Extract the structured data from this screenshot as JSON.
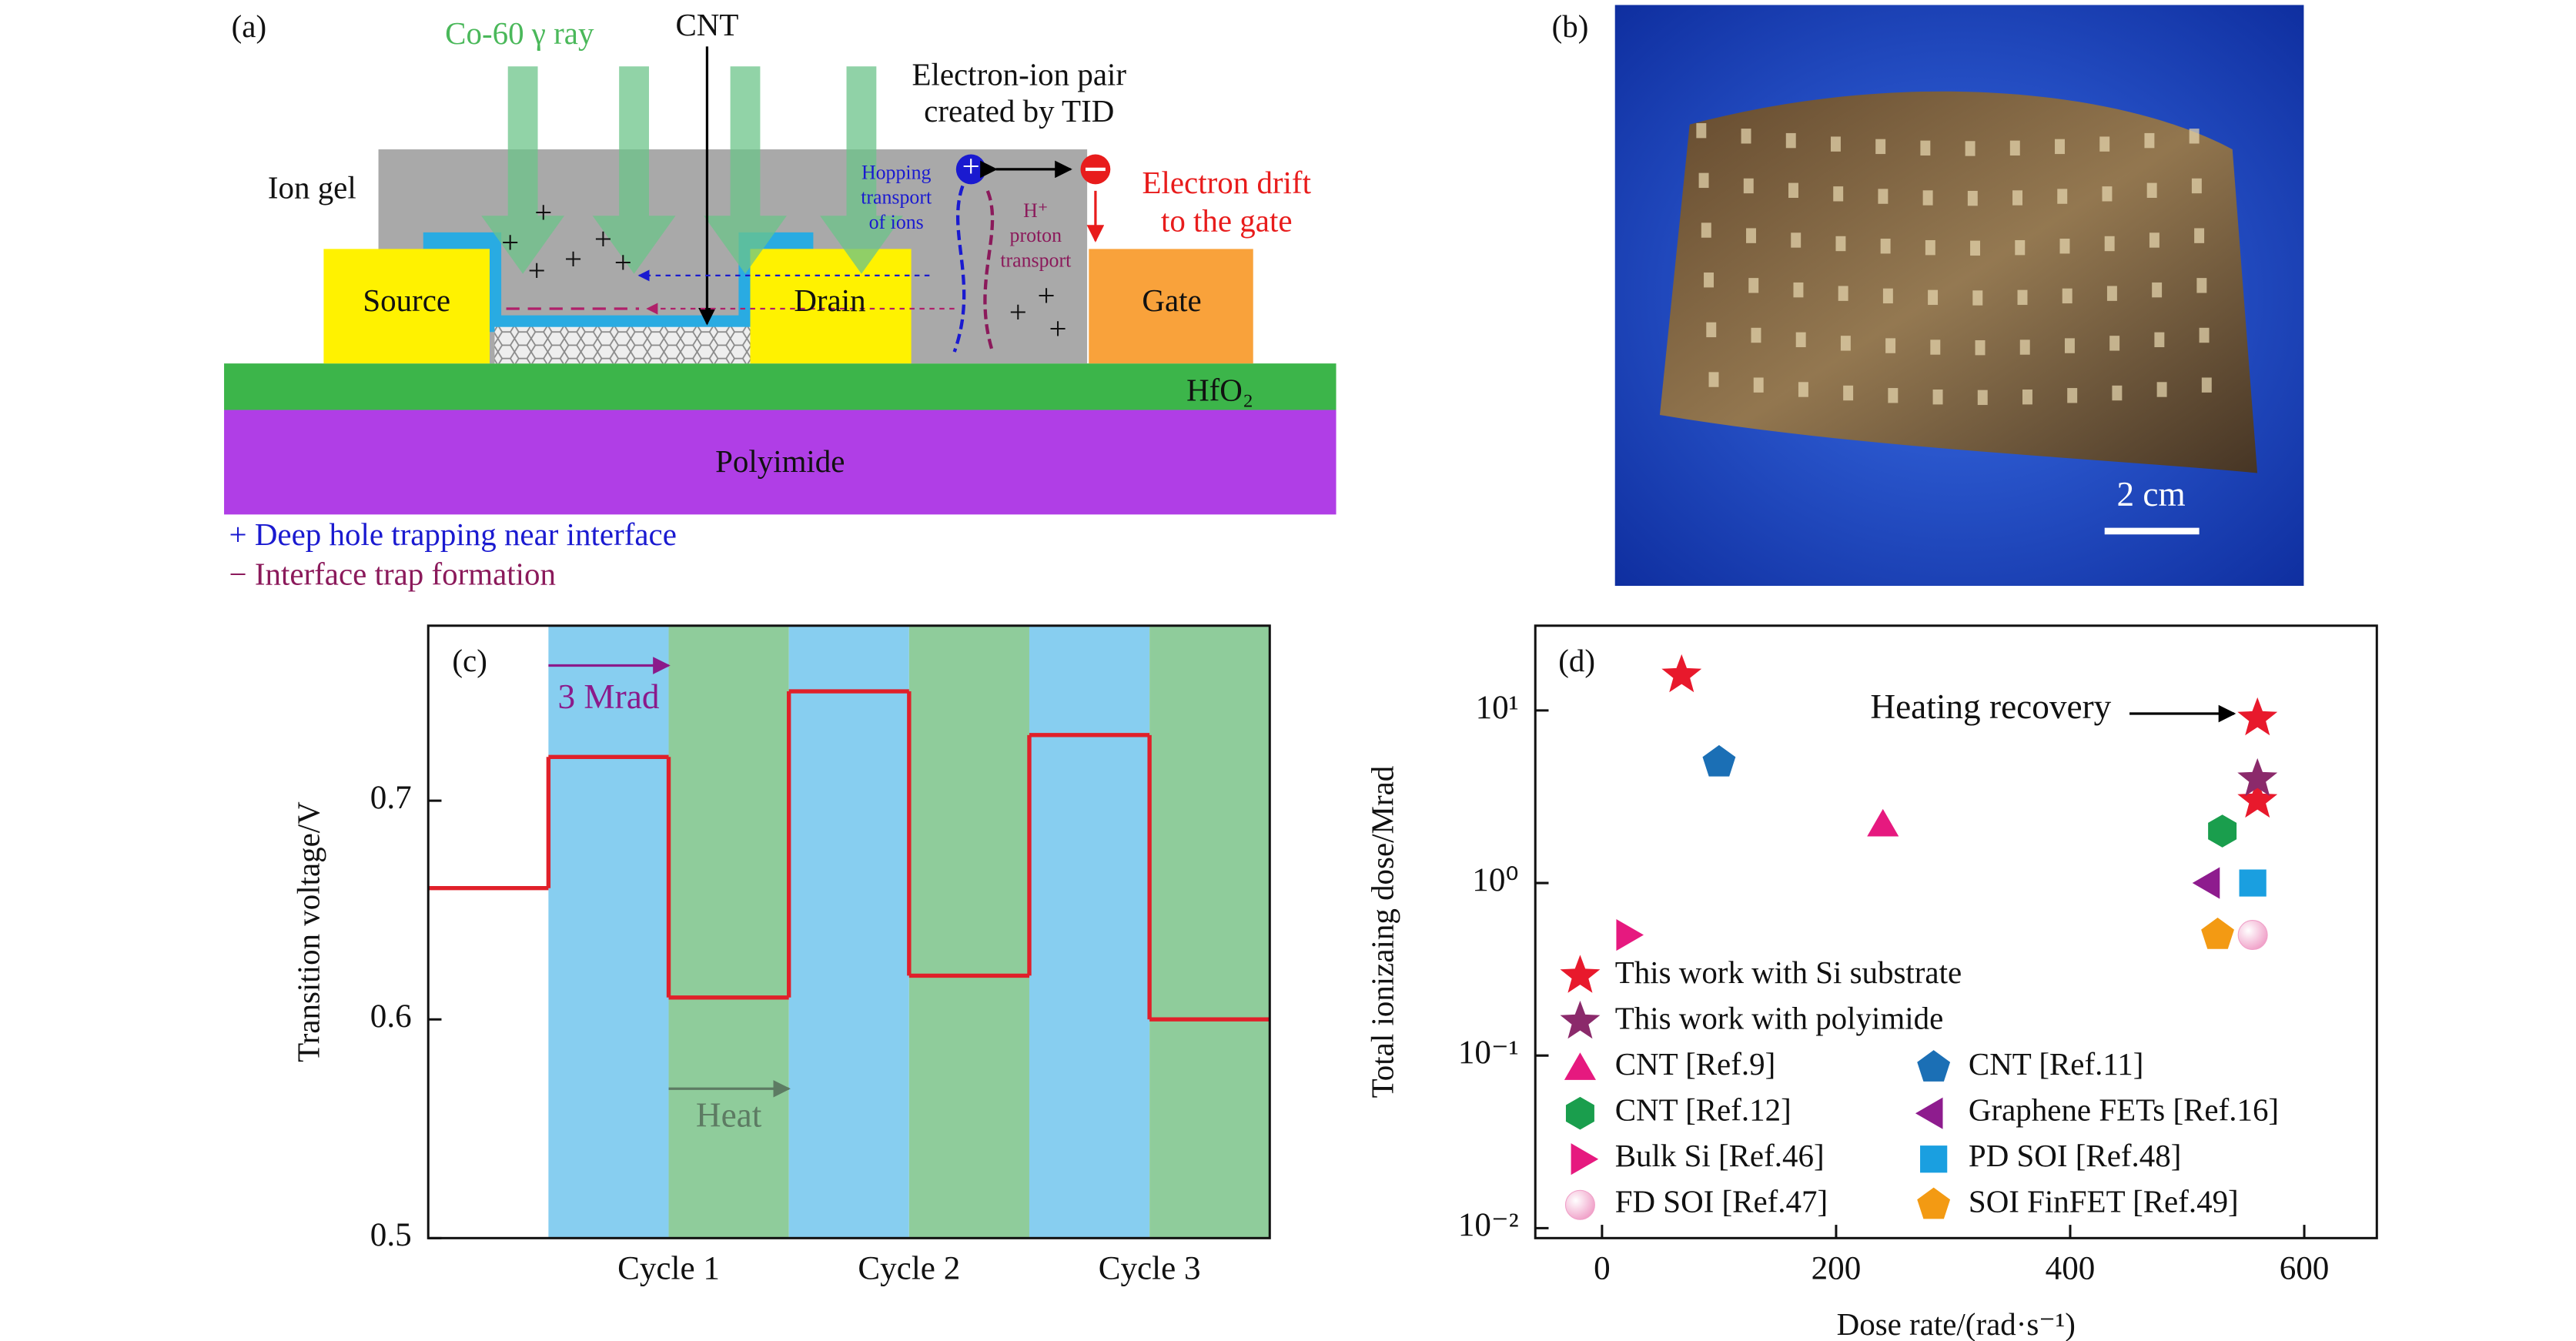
{
  "panel_labels": [
    "(a)",
    "(b)"
  ],
  "diagram": {
    "ray": "Co-60 γ ray",
    "cnt": "CNT",
    "pair": [
      "Electron-ion pair",
      "created by TID"
    ],
    "ion_gel": "Ion gel",
    "source": "Source",
    "drain": "Drain",
    "gate": "Gate",
    "hfo2": "HfO₂",
    "polyimide": "Polyimide",
    "hopping": [
      "Hopping",
      "transport",
      "of ions"
    ],
    "proton": [
      "H⁺",
      "proton",
      "transport"
    ],
    "drift": [
      "Electron drift",
      "to the gate"
    ],
    "notes": [
      "+ Deep hole trapping near interface",
      "− Interface trap formation"
    ]
  },
  "photo": {
    "scale": "2 cm"
  },
  "chart_data": [
    {
      "type": "line",
      "panel": "(c)",
      "ylabel": "Transition voltage/V",
      "step": "post",
      "color": "#e0202a",
      "x": [
        0,
        1,
        2,
        3,
        4,
        5,
        6
      ],
      "values": [
        0.66,
        0.72,
        0.61,
        0.75,
        0.62,
        0.73,
        0.6
      ],
      "xlim": [
        0,
        7
      ],
      "xticks": [
        {
          "value": 2,
          "label": "Cycle 1"
        },
        {
          "value": 4,
          "label": "Cycle 2"
        },
        {
          "value": 6,
          "label": "Cycle 3"
        }
      ],
      "ylim": [
        0.5,
        0.78
      ],
      "yticks": [
        0.5,
        0.6,
        0.7
      ],
      "shading": [
        {
          "from": 1,
          "to": 2,
          "color": "#87cef0"
        },
        {
          "from": 2,
          "to": 3,
          "color": "#8fcc9b"
        },
        {
          "from": 3,
          "to": 4,
          "color": "#87cef0"
        },
        {
          "from": 4,
          "to": 5,
          "color": "#8fcc9b"
        },
        {
          "from": 5,
          "to": 6,
          "color": "#87cef0"
        },
        {
          "from": 6,
          "to": 7,
          "color": "#8fcc9b"
        }
      ],
      "annotations": [
        {
          "text": "3 Mrad",
          "color": "#8b1a8b"
        },
        {
          "text": "Heat",
          "color": "#5d7b63"
        }
      ]
    },
    {
      "type": "scatter",
      "panel": "(d)",
      "xlabel": "Dose rate/(rad·s⁻¹)",
      "ylabel": "Total ionizaing dose/Mrad",
      "log_y": true,
      "legend": "lower left",
      "xlim": [
        -57,
        662
      ],
      "xticks": [
        0,
        200,
        400,
        600
      ],
      "ylim": [
        0.00875,
        31
      ],
      "yticks": [
        {
          "value": 10,
          "label": "10¹"
        },
        {
          "value": 1,
          "label": "10⁰"
        },
        {
          "value": 0.1,
          "label": "10⁻¹"
        },
        {
          "value": 0.01,
          "label": "10⁻²"
        }
      ],
      "annotation": "Heating recovery",
      "series": [
        {
          "name": "This work with Si substrate",
          "color": "#e8192c",
          "marker": "star",
          "x": [
            68,
            560,
            560
          ],
          "values": [
            16,
            9,
            3
          ]
        },
        {
          "name": "This work with polyimide",
          "color": "#8b2a6b",
          "marker": "star",
          "x": [
            560
          ],
          "values": [
            4
          ]
        },
        {
          "name": "CNT [Ref.9]",
          "color": "#e6197f",
          "marker": "triangle",
          "x": [
            240
          ],
          "values": [
            2.2
          ]
        },
        {
          "name": "CNT [Ref.11]",
          "color": "#1b6fb5",
          "marker": "pentagon",
          "x": [
            100
          ],
          "values": [
            5
          ]
        },
        {
          "name": "CNT [Ref.12]",
          "color": "#1a9e4d",
          "marker": "hexagon",
          "x": [
            530
          ],
          "values": [
            2
          ]
        },
        {
          "name": "Graphene FETs [Ref.16]",
          "color": "#8e1c8e",
          "marker": "left",
          "x": [
            520
          ],
          "values": [
            1
          ]
        },
        {
          "name": "Bulk Si [Ref.46]",
          "color": "#e6197f",
          "marker": "right",
          "x": [
            20
          ],
          "values": [
            0.5
          ]
        },
        {
          "name": "PD SOI [Ref.48]",
          "color": "#1a9fe0",
          "marker": "square",
          "x": [
            556
          ],
          "values": [
            1
          ]
        },
        {
          "name": "FD SOI [Ref.47]",
          "color": "#f0a0c8",
          "marker": "circle",
          "x": [
            556
          ],
          "values": [
            0.5
          ]
        },
        {
          "name": "SOI FinFET [Ref.49]",
          "color": "#f39a13",
          "marker": "pentagon",
          "x": [
            526
          ],
          "values": [
            0.5
          ]
        }
      ]
    }
  ]
}
